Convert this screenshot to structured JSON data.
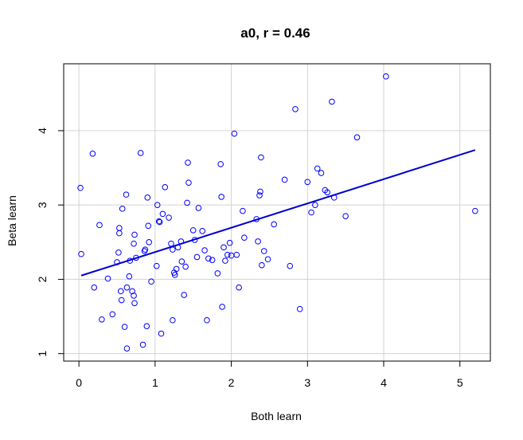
{
  "chart_data": {
    "type": "scatter",
    "title": "a0, r = 0.46",
    "xlabel": "Both learn",
    "ylabel": "Beta learn",
    "xlim": [
      -0.2,
      5.4
    ],
    "ylim": [
      0.9,
      4.9
    ],
    "xticks": [
      0,
      1,
      2,
      3,
      4,
      5
    ],
    "yticks": [
      1,
      2,
      3,
      4
    ],
    "grid": true,
    "point_color": "#0000ff",
    "line_color": "#0000cc",
    "regression_line": {
      "x": [
        0.03,
        5.2
      ],
      "y": [
        2.05,
        3.74
      ]
    },
    "points": [
      [
        0.02,
        3.23
      ],
      [
        0.03,
        2.34
      ],
      [
        0.18,
        3.69
      ],
      [
        0.2,
        1.89
      ],
      [
        0.27,
        2.73
      ],
      [
        0.3,
        1.46
      ],
      [
        0.38,
        2.01
      ],
      [
        0.44,
        1.53
      ],
      [
        0.5,
        2.23
      ],
      [
        0.52,
        2.36
      ],
      [
        0.53,
        2.69
      ],
      [
        0.53,
        2.62
      ],
      [
        0.55,
        1.84
      ],
      [
        0.56,
        1.72
      ],
      [
        0.57,
        2.95
      ],
      [
        0.6,
        1.36
      ],
      [
        0.62,
        3.14
      ],
      [
        0.63,
        1.07
      ],
      [
        0.63,
        1.89
      ],
      [
        0.66,
        2.04
      ],
      [
        0.67,
        2.25
      ],
      [
        0.7,
        1.84
      ],
      [
        0.72,
        2.48
      ],
      [
        0.72,
        1.78
      ],
      [
        0.73,
        1.68
      ],
      [
        0.73,
        2.6
      ],
      [
        0.75,
        2.29
      ],
      [
        0.81,
        3.7
      ],
      [
        0.84,
        1.12
      ],
      [
        0.86,
        2.38
      ],
      [
        0.87,
        2.4
      ],
      [
        0.89,
        1.37
      ],
      [
        0.9,
        3.1
      ],
      [
        0.91,
        2.72
      ],
      [
        0.92,
        2.5
      ],
      [
        0.95,
        1.97
      ],
      [
        1.02,
        2.18
      ],
      [
        1.03,
        3.0
      ],
      [
        1.05,
        2.78
      ],
      [
        1.06,
        2.77
      ],
      [
        1.08,
        1.27
      ],
      [
        1.1,
        2.88
      ],
      [
        1.13,
        3.24
      ],
      [
        1.18,
        2.83
      ],
      [
        1.21,
        2.48
      ],
      [
        1.23,
        2.4
      ],
      [
        1.23,
        1.45
      ],
      [
        1.25,
        2.09
      ],
      [
        1.26,
        2.06
      ],
      [
        1.28,
        2.14
      ],
      [
        1.3,
        2.43
      ],
      [
        1.34,
        2.51
      ],
      [
        1.35,
        2.24
      ],
      [
        1.38,
        1.79
      ],
      [
        1.4,
        2.17
      ],
      [
        1.42,
        3.03
      ],
      [
        1.43,
        3.57
      ],
      [
        1.44,
        3.3
      ],
      [
        1.5,
        2.66
      ],
      [
        1.52,
        2.53
      ],
      [
        1.55,
        2.3
      ],
      [
        1.57,
        2.96
      ],
      [
        1.62,
        2.65
      ],
      [
        1.65,
        2.39
      ],
      [
        1.68,
        1.45
      ],
      [
        1.7,
        2.28
      ],
      [
        1.75,
        2.26
      ],
      [
        1.82,
        2.08
      ],
      [
        1.86,
        3.55
      ],
      [
        1.87,
        3.11
      ],
      [
        1.88,
        1.63
      ],
      [
        1.9,
        2.43
      ],
      [
        1.92,
        2.25
      ],
      [
        1.95,
        2.33
      ],
      [
        1.98,
        2.49
      ],
      [
        2.0,
        2.32
      ],
      [
        2.04,
        3.96
      ],
      [
        2.07,
        2.33
      ],
      [
        2.1,
        1.89
      ],
      [
        2.15,
        2.92
      ],
      [
        2.17,
        2.56
      ],
      [
        2.33,
        2.81
      ],
      [
        2.35,
        2.51
      ],
      [
        2.37,
        3.13
      ],
      [
        2.38,
        3.18
      ],
      [
        2.39,
        3.64
      ],
      [
        2.4,
        2.19
      ],
      [
        2.43,
        2.38
      ],
      [
        2.48,
        2.27
      ],
      [
        2.56,
        2.74
      ],
      [
        2.7,
        3.34
      ],
      [
        2.77,
        2.18
      ],
      [
        2.84,
        4.29
      ],
      [
        2.9,
        1.6
      ],
      [
        3.0,
        3.31
      ],
      [
        3.05,
        2.9
      ],
      [
        3.1,
        3.0
      ],
      [
        3.13,
        3.49
      ],
      [
        3.18,
        3.43
      ],
      [
        3.23,
        3.2
      ],
      [
        3.26,
        3.17
      ],
      [
        3.32,
        4.39
      ],
      [
        3.35,
        3.1
      ],
      [
        3.5,
        2.85
      ],
      [
        3.65,
        3.91
      ],
      [
        4.03,
        4.73
      ],
      [
        5.2,
        2.92
      ]
    ]
  }
}
